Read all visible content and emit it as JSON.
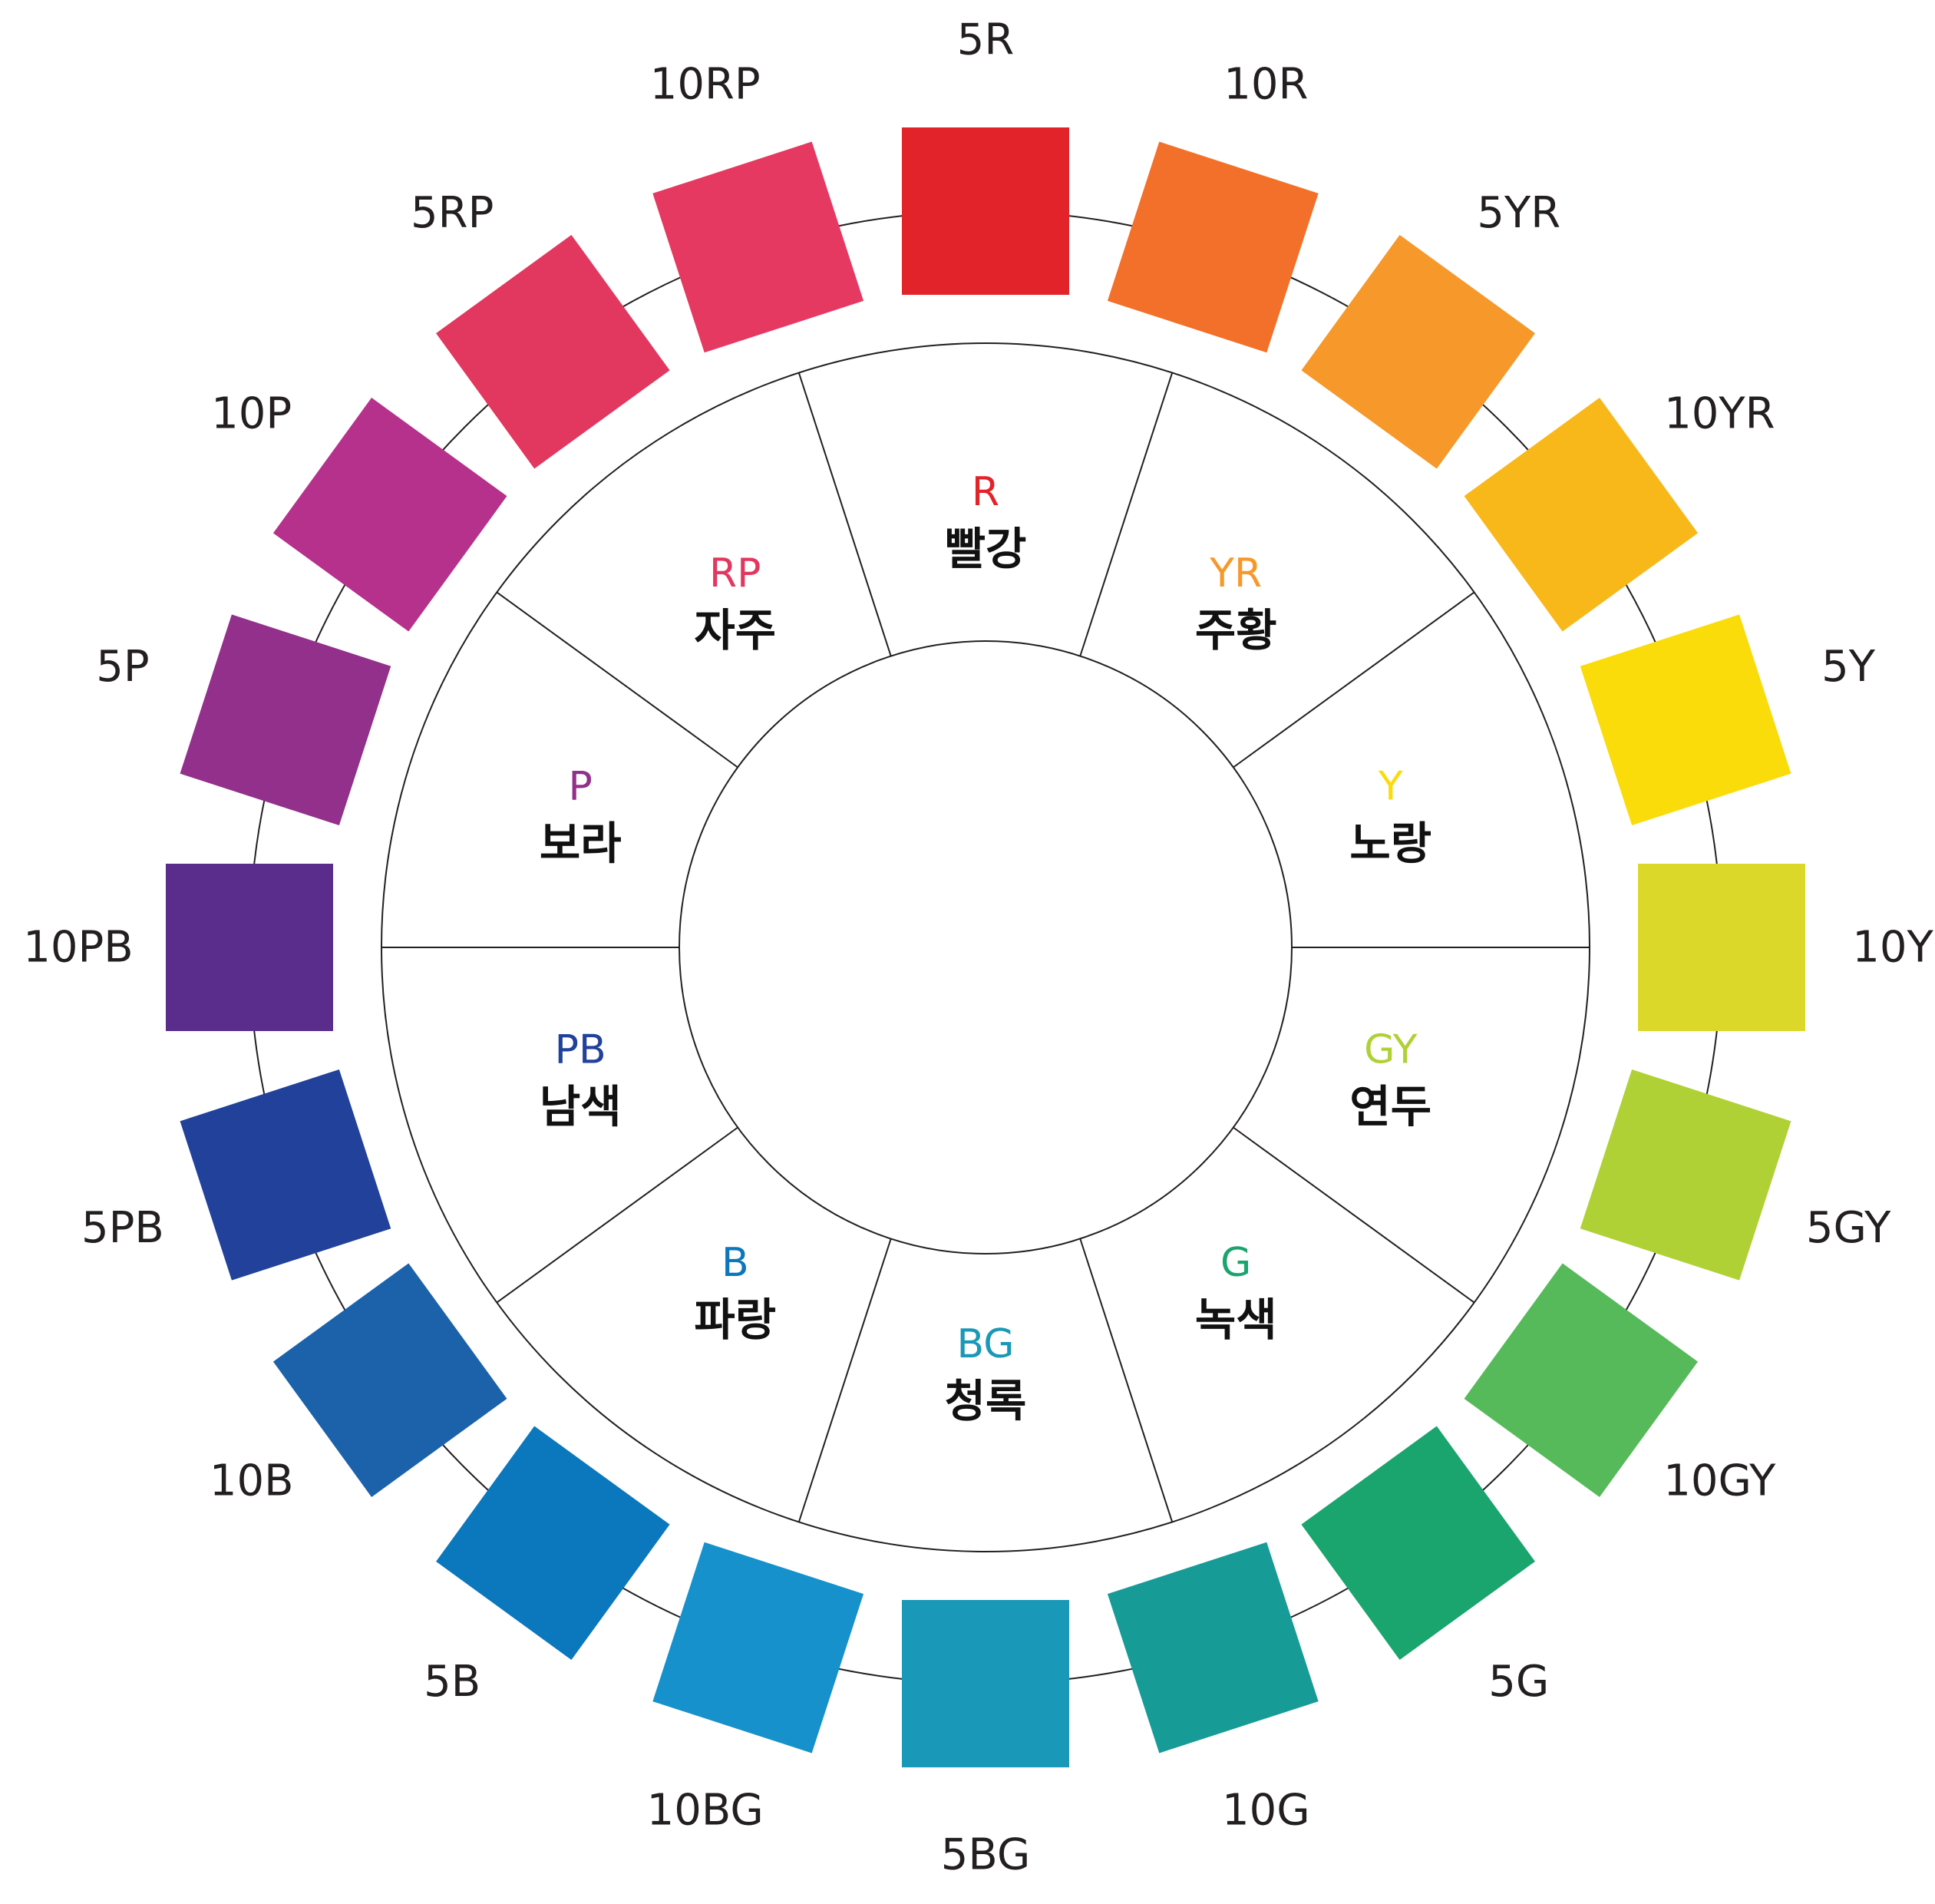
{
  "swatches": [
    {
      "label": "5R",
      "color": "#e2232a"
    },
    {
      "label": "10R",
      "color": "#f2702a"
    },
    {
      "label": "5YR",
      "color": "#f6982a"
    },
    {
      "label": "10YR",
      "color": "#f9b81a"
    },
    {
      "label": "5Y",
      "color": "#fadc0a"
    },
    {
      "label": "10Y",
      "color": "#dcd829"
    },
    {
      "label": "5GY",
      "color": "#b0d136"
    },
    {
      "label": "10GY",
      "color": "#57ba5a"
    },
    {
      "label": "5G",
      "color": "#1aa46e"
    },
    {
      "label": "10G",
      "color": "#179b97"
    },
    {
      "label": "5BG",
      "color": "#1a98b7"
    },
    {
      "label": "10BG",
      "color": "#1691cb"
    },
    {
      "label": "5B",
      "color": "#0b77bc"
    },
    {
      "label": "10B",
      "color": "#1b62ab"
    },
    {
      "label": "5PB",
      "color": "#21419a"
    },
    {
      "label": "10PB",
      "color": "#5a2d8c"
    },
    {
      "label": "5P",
      "color": "#92308b"
    },
    {
      "label": "10P",
      "color": "#b5318c"
    },
    {
      "label": "5RP",
      "color": "#e2375f"
    },
    {
      "label": "10RP",
      "color": "#e53962"
    }
  ],
  "sectors": [
    {
      "code": "R",
      "name": "빨강",
      "color": "#e2232a"
    },
    {
      "code": "YR",
      "name": "주황",
      "color": "#f6982a"
    },
    {
      "code": "Y",
      "name": "노랑",
      "color": "#fadc0a"
    },
    {
      "code": "GY",
      "name": "연두",
      "color": "#b0d136"
    },
    {
      "code": "G",
      "name": "녹색",
      "color": "#1aa46e"
    },
    {
      "code": "BG",
      "name": "청록",
      "color": "#1a98b7"
    },
    {
      "code": "B",
      "name": "파랑",
      "color": "#0b77bc"
    },
    {
      "code": "PB",
      "name": "남색",
      "color": "#21419a"
    },
    {
      "code": "P",
      "name": "보라",
      "color": "#92308b"
    },
    {
      "code": "RP",
      "name": "자주",
      "color": "#e2375f"
    }
  ]
}
